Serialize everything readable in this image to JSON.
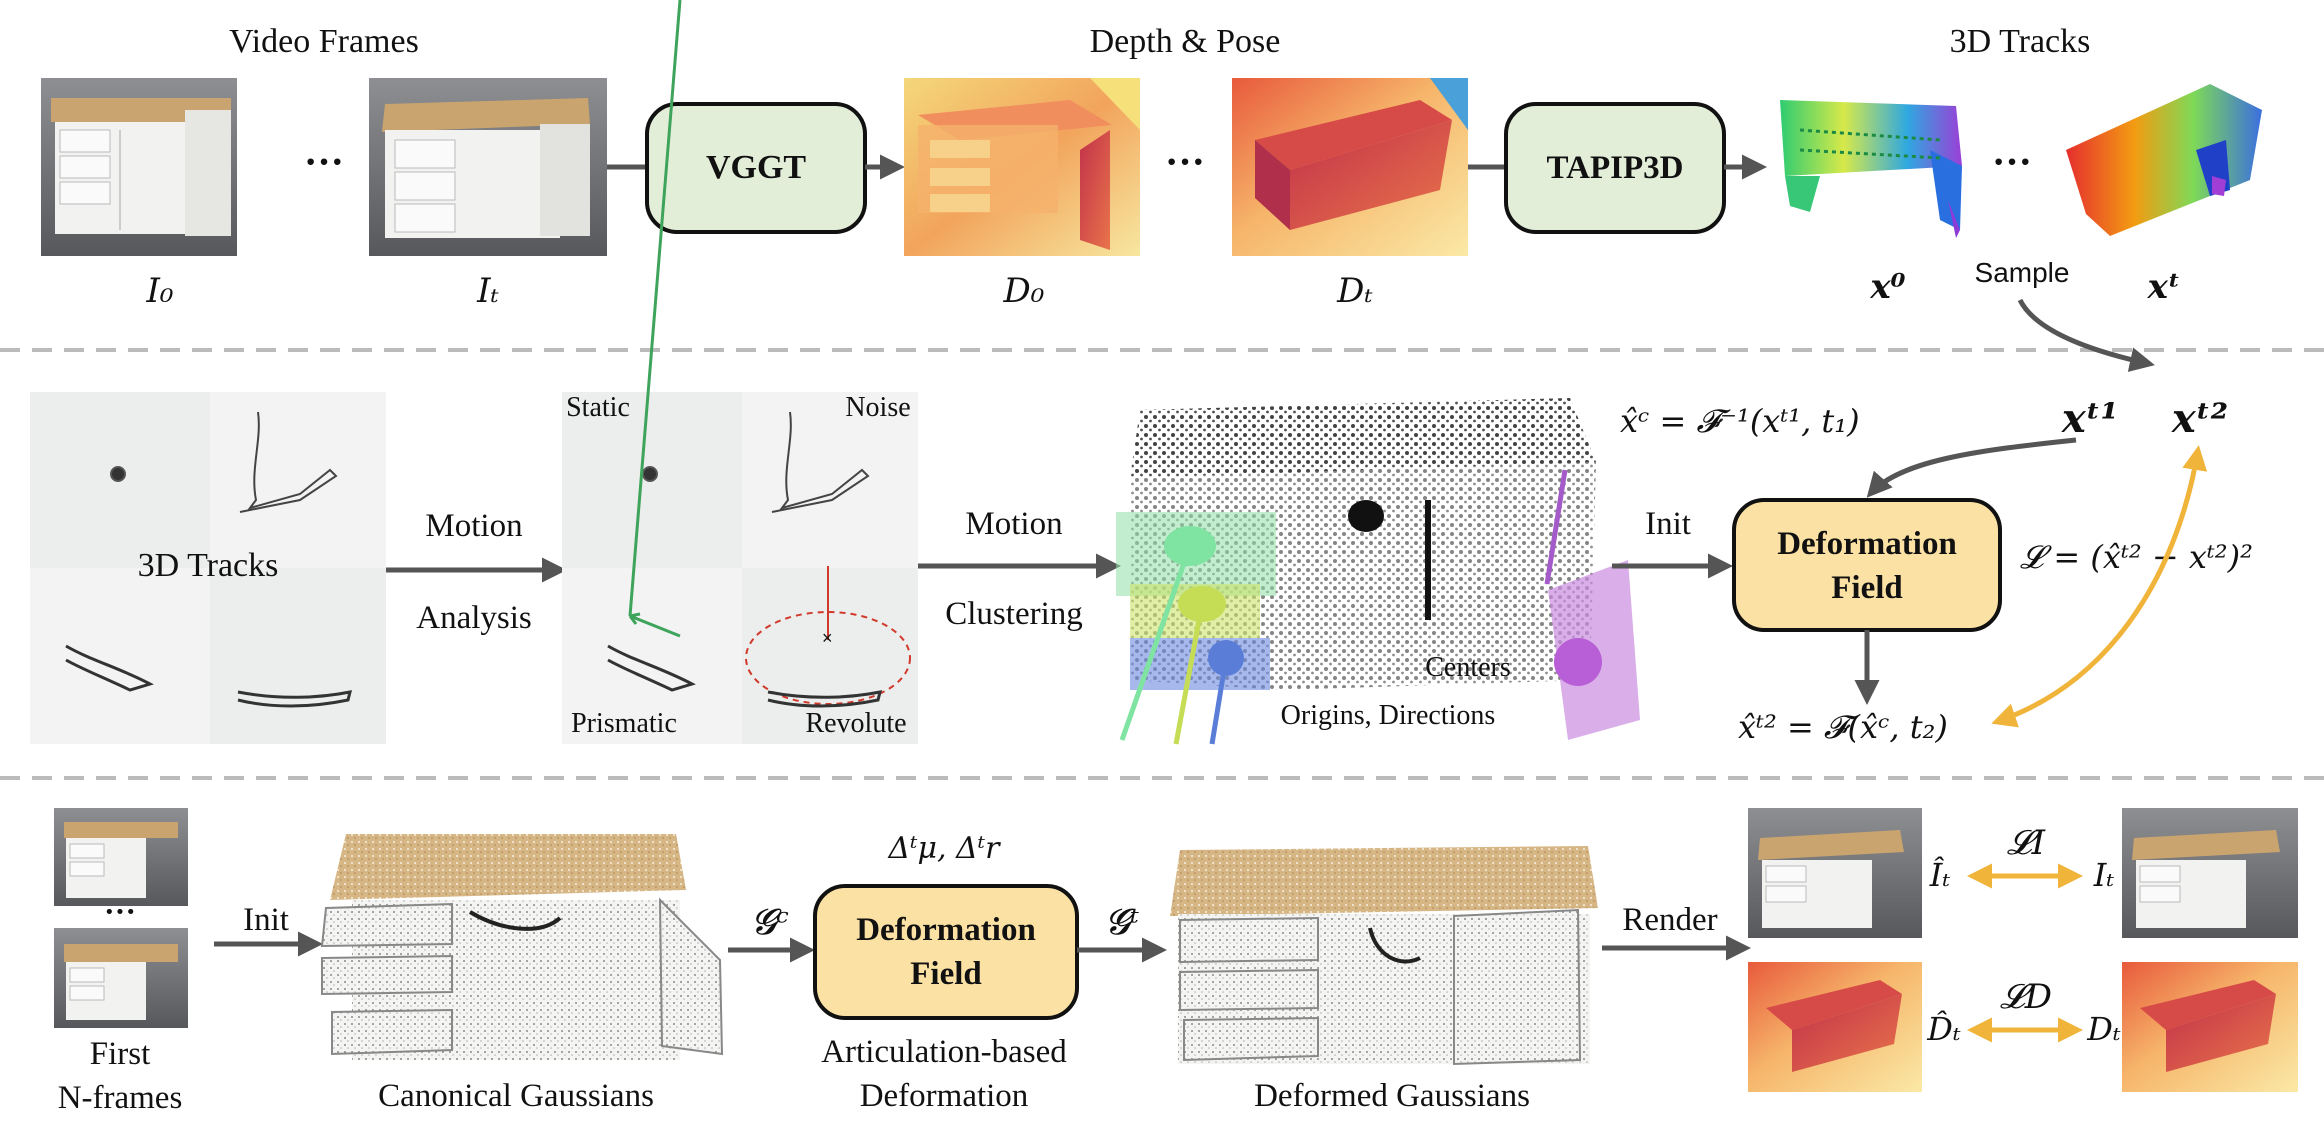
{
  "colors": {
    "arrow": "#555555",
    "feedback_arrow": "#f0b43a",
    "green_box": "#e3eed9",
    "yellow_box": "#fbe2a4",
    "divider": "#bbbbbb",
    "wood": "#caa46f",
    "cabinet_white": "#f2f2f0"
  },
  "stage1": {
    "title_frames": "Video Frames",
    "title_depth": "Depth & Pose",
    "title_tracks": "3D Tracks",
    "ellipsis": "···",
    "vggt": "VGGT",
    "tapip3d": "TAPIP3D",
    "label_i0": "I₀",
    "label_it": "Iₜ",
    "label_d0": "D₀",
    "label_dt": "Dₜ",
    "label_x0": "x⁰",
    "label_xt": "xᵗ",
    "sample": "Sample"
  },
  "stage2": {
    "tracks_label": "3D Tracks",
    "motion_analysis_1": "Motion",
    "motion_analysis_2": "Analysis",
    "static": "Static",
    "noise": "Noise",
    "prismatic": "Prismatic",
    "revolute": "Revolute",
    "motion_clustering_1": "Motion",
    "motion_clustering_2": "Clustering",
    "centers": "Centers",
    "origins_directions": "Origins, Directions",
    "init": "Init",
    "deformation_1": "Deformation",
    "deformation_2": "Field",
    "eq_inverse": "x̂ᶜ = 𝓕⁻¹(xᵗ¹, t₁)",
    "xt1": "xᵗ¹",
    "xt2": "xᵗ²",
    "eq_forward": "x̂ᵗ² = 𝓕(x̂ᶜ, t₂)",
    "eq_loss": "𝓛 = (x̂ᵗ² − xᵗ²)²"
  },
  "stage3": {
    "ellipsis": "···",
    "first_1": "First",
    "first_2": "N-frames",
    "init": "Init",
    "canonical": "Canonical Gaussians",
    "gc": "𝓖ᶜ",
    "deltas": "Δᵗμ, Δᵗr",
    "deformation_1": "Deformation",
    "deformation_2": "Field",
    "gt": "𝓖ᵗ",
    "articulation_1": "Articulation-based",
    "articulation_2": "Deformation",
    "deformed": "Deformed Gaussians",
    "render": "Render",
    "it_hat": "Îₜ",
    "it": "Iₜ",
    "li": "𝓛I",
    "dt_hat": "D̂ₜ",
    "dt": "Dₜ",
    "ld": "𝓛D"
  }
}
